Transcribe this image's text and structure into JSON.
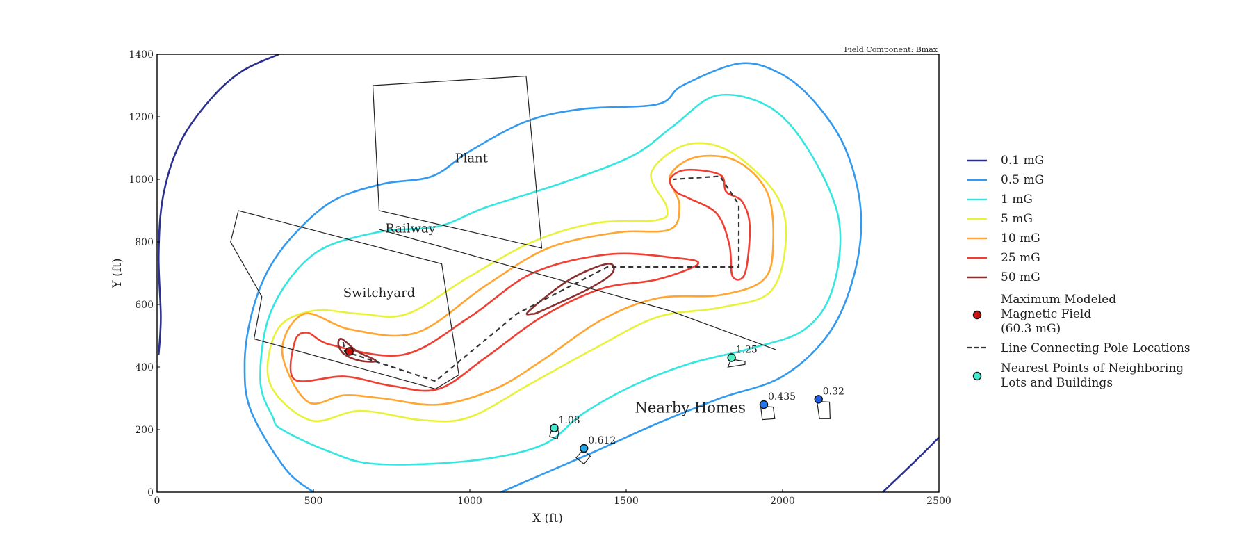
{
  "chart_data": {
    "type": "contour",
    "xlabel": "X (ft)",
    "ylabel": "Y (ft)",
    "xlim": [
      0,
      2500
    ],
    "ylim": [
      0,
      1400
    ],
    "xticks": [
      0,
      500,
      1000,
      1500,
      2000,
      2500
    ],
    "yticks": [
      0,
      200,
      400,
      600,
      800,
      1000,
      1200,
      1400
    ],
    "corner_note": "Field Component: Bmax",
    "contour_levels": [
      {
        "label": "0.1 mG",
        "color": "#2b2f8f"
      },
      {
        "label": "0.5 mG",
        "color": "#3399ee"
      },
      {
        "label": "1 mG",
        "color": "#33e6e0"
      },
      {
        "label": "5 mG",
        "color": "#e8f23a"
      },
      {
        "label": "10 mG",
        "color": "#ffa530"
      },
      {
        "label": "25 mG",
        "color": "#ef3f33"
      },
      {
        "label": "50 mG",
        "color": "#8b2f2f"
      }
    ],
    "max_field_point": {
      "x": 615,
      "y": 450,
      "label_lines": [
        "Maximum Modeled",
        "Magnetic Field",
        "(60.3 mG)"
      ],
      "color": "#cc1111"
    },
    "pole_line": {
      "label": "Line Connecting Pole Locations",
      "points": [
        [
          595,
          480
        ],
        [
          600,
          450
        ],
        [
          890,
          355
        ],
        [
          1150,
          570
        ],
        [
          1440,
          720
        ],
        [
          1860,
          720
        ],
        [
          1860,
          920
        ],
        [
          1800,
          1010
        ],
        [
          1650,
          1000
        ]
      ]
    },
    "nearest_points_label_lines": [
      "Nearest Points of Neighboring",
      "Lots and Buildings"
    ],
    "nearest_points": [
      {
        "x": 1270,
        "y": 205,
        "value": "1.08",
        "color": "#40ecd0"
      },
      {
        "x": 1365,
        "y": 140,
        "value": "0.612",
        "color": "#26a8e8"
      },
      {
        "x": 1837,
        "y": 430,
        "value": "1.25",
        "color": "#52f0c4"
      },
      {
        "x": 1940,
        "y": 280,
        "value": "0.435",
        "color": "#2277ee"
      },
      {
        "x": 2115,
        "y": 297,
        "value": "0.32",
        "color": "#1f5ee6"
      }
    ],
    "region_labels": [
      {
        "text": "Plant",
        "x": 1005,
        "y": 1055
      },
      {
        "text": "Railway",
        "x": 810,
        "y": 830
      },
      {
        "text": "Switchyard",
        "x": 710,
        "y": 625
      }
    ],
    "homes_label": "Nearby Homes"
  }
}
